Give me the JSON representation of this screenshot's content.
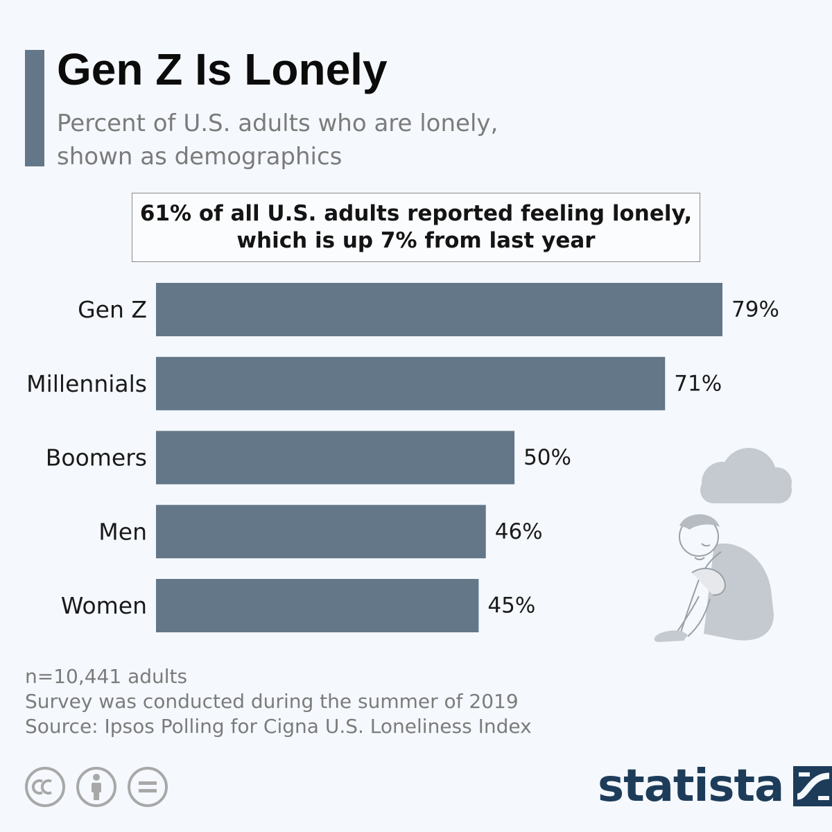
{
  "header": {
    "title": "Gen Z Is Lonely",
    "subtitle_line1": "Percent of U.S. adults who are lonely,",
    "subtitle_line2": "shown as demographics"
  },
  "callout": {
    "line1": "61% of all U.S. adults reported feeling lonely,",
    "line2": "which is up 7% from last year"
  },
  "chart_data": {
    "type": "bar",
    "orientation": "horizontal",
    "categories": [
      "Gen Z",
      "Millennials",
      "Boomers",
      "Men",
      "Women"
    ],
    "values": [
      79,
      71,
      50,
      46,
      45
    ],
    "value_labels": [
      "79%",
      "71%",
      "50%",
      "46%",
      "45%"
    ],
    "xlim": [
      0,
      79
    ],
    "grid": false,
    "legend": "none",
    "bar_color": "#637789"
  },
  "footer": {
    "notes": [
      "n=10,441 adults",
      "Survey was conducted during the summer of 2019",
      "Source: Ipsos Polling for Cigna U.S. Loneliness Index"
    ],
    "brand": "statista"
  },
  "icons": {
    "cc": "creative-commons-icon",
    "attribution": "attribution-icon",
    "no_derivatives": "no-derivatives-icon",
    "brand_mark": "statista-mark-icon",
    "illustration": "lonely-person-illustration"
  },
  "colors": {
    "background": "#f5f8fc",
    "accent": "#647789",
    "brand": "#1d3c5a",
    "illustration_gray": "#c5cad0"
  }
}
